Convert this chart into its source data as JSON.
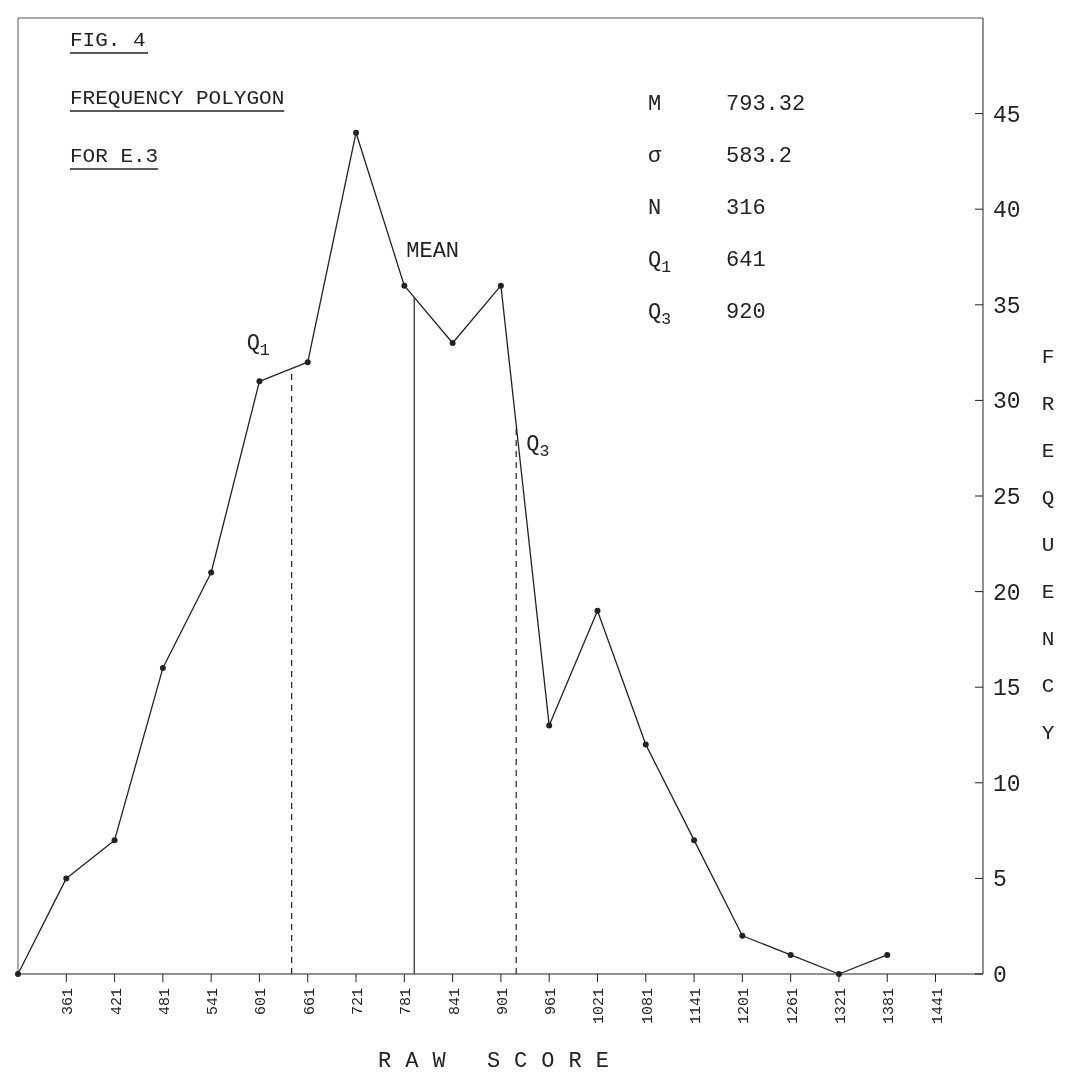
{
  "chart_data": {
    "type": "line",
    "title": "FIG. 4",
    "subtitle": "FREQUENCY POLYGON\nFOR E.3",
    "xlabel": "RAW SCORE",
    "ylabel": "FREQUENCY",
    "x": [
      301,
      361,
      421,
      481,
      541,
      601,
      661,
      721,
      781,
      841,
      901,
      961,
      1021,
      1081,
      1141,
      1201,
      1261,
      1321,
      1381
    ],
    "series": [
      {
        "color": "#222222",
        "values": [
          0,
          5,
          7,
          16,
          21,
          31,
          32,
          44,
          36,
          33,
          36,
          13,
          19,
          12,
          7,
          2,
          1,
          0,
          1
        ]
      }
    ],
    "xlim": [
      301,
      1500
    ],
    "xticks": [
      361,
      421,
      481,
      541,
      601,
      661,
      721,
      781,
      841,
      901,
      961,
      1021,
      1081,
      1141,
      1201,
      1261,
      1321,
      1381,
      1441
    ],
    "ylim": [
      0,
      50
    ],
    "yticks": [
      0,
      5,
      10,
      15,
      20,
      25,
      30,
      35,
      40,
      45
    ],
    "ref_lines": [
      {
        "axis": "x",
        "value": 641,
        "label": "Q$_{1}$",
        "line_style": "dashed"
      },
      {
        "axis": "x",
        "value": 793.32,
        "label": "MEAN",
        "line_style": "solid"
      },
      {
        "axis": "x",
        "value": 920,
        "label": "Q$_{3}$",
        "line_style": "dashed"
      }
    ],
    "annotations": [
      "M 793.32",
      "σ 583.2",
      "N 316",
      "Q$_{1}$ 641",
      "Q$_{3}$ 920"
    ],
    "marker": "circle"
  }
}
